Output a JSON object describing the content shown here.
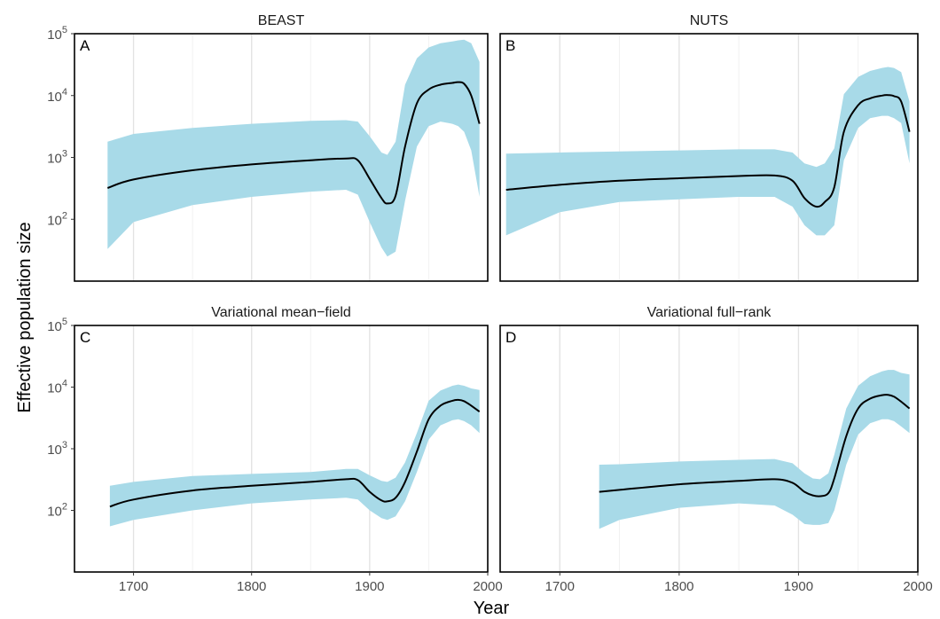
{
  "chart_data": {
    "type": "area",
    "xlabel": "Year",
    "ylabel": "Effective population size",
    "xlim": [
      1650,
      2000
    ],
    "x_ticks": [
      1700,
      1800,
      1900,
      2000
    ],
    "y_scale": "log10",
    "ylim": [
      10,
      100000
    ],
    "y_ticks": [
      {
        "base": "10",
        "exp": "2",
        "value": 100
      },
      {
        "base": "10",
        "exp": "3",
        "value": 1000
      },
      {
        "base": "10",
        "exp": "4",
        "value": 10000
      },
      {
        "base": "10",
        "exp": "5",
        "value": 100000
      }
    ],
    "band_color": "#a8dae8",
    "line_color": "#000000",
    "grid": "vertical major and minor, light grey",
    "panels": [
      {
        "title": "BEAST",
        "label": "A",
        "x": [
          1678,
          1700,
          1750,
          1800,
          1850,
          1880,
          1890,
          1900,
          1910,
          1915,
          1922,
          1930,
          1940,
          1950,
          1960,
          1970,
          1975,
          1980,
          1986,
          1993
        ],
        "median": [
          320,
          440,
          620,
          770,
          900,
          960,
          900,
          450,
          220,
          180,
          240,
          1500,
          7500,
          12500,
          15000,
          16000,
          16500,
          15500,
          10000,
          3500
        ],
        "lower": [
          33,
          90,
          170,
          230,
          280,
          300,
          250,
          90,
          35,
          25,
          30,
          200,
          1500,
          3200,
          3800,
          3500,
          3200,
          2600,
          1300,
          230
        ],
        "upper": [
          1800,
          2400,
          3000,
          3500,
          3900,
          4000,
          3800,
          2200,
          1200,
          1100,
          1800,
          15000,
          40000,
          60000,
          70000,
          75000,
          78000,
          80000,
          70000,
          35000
        ]
      },
      {
        "title": "NUTS",
        "label": "B",
        "x": [
          1655,
          1700,
          1750,
          1800,
          1850,
          1880,
          1895,
          1905,
          1915,
          1922,
          1930,
          1938,
          1950,
          1960,
          1970,
          1975,
          1980,
          1986,
          1993
        ],
        "median": [
          300,
          360,
          420,
          460,
          500,
          510,
          420,
          220,
          160,
          190,
          330,
          2600,
          7000,
          9000,
          10000,
          10200,
          9800,
          8000,
          2600
        ],
        "lower": [
          55,
          130,
          190,
          210,
          230,
          230,
          160,
          80,
          55,
          55,
          80,
          900,
          3000,
          4300,
          4700,
          4700,
          4300,
          3600,
          800
        ],
        "upper": [
          1150,
          1200,
          1250,
          1300,
          1350,
          1350,
          1200,
          800,
          700,
          800,
          1400,
          10500,
          20000,
          25000,
          28000,
          29000,
          28000,
          24000,
          8000
        ]
      },
      {
        "title": "Variational mean−field",
        "label": "C",
        "x": [
          1680,
          1700,
          1750,
          1800,
          1850,
          1880,
          1890,
          1900,
          1910,
          1915,
          1922,
          1930,
          1940,
          1950,
          1960,
          1970,
          1975,
          1980,
          1986,
          1993
        ],
        "median": [
          115,
          150,
          210,
          250,
          290,
          320,
          310,
          200,
          145,
          140,
          160,
          290,
          900,
          3000,
          5000,
          6000,
          6200,
          5900,
          5000,
          4000
        ],
        "lower": [
          55,
          70,
          100,
          130,
          150,
          160,
          150,
          100,
          75,
          70,
          80,
          140,
          420,
          1400,
          2400,
          2900,
          3000,
          2800,
          2400,
          1800
        ],
        "upper": [
          250,
          290,
          360,
          390,
          420,
          470,
          470,
          370,
          300,
          290,
          340,
          600,
          1800,
          6000,
          8800,
          10500,
          11000,
          10500,
          9500,
          9000
        ]
      },
      {
        "title": "Variational full−rank",
        "label": "D",
        "x": [
          1733,
          1750,
          1800,
          1850,
          1880,
          1895,
          1905,
          1912,
          1918,
          1925,
          1930,
          1940,
          1950,
          1960,
          1970,
          1975,
          1980,
          1986,
          1993
        ],
        "median": [
          200,
          215,
          265,
          300,
          320,
          280,
          200,
          175,
          170,
          190,
          330,
          1600,
          4500,
          6500,
          7400,
          7500,
          7000,
          5800,
          4500
        ],
        "lower": [
          50,
          70,
          110,
          130,
          120,
          85,
          60,
          58,
          58,
          62,
          100,
          550,
          1700,
          2600,
          3000,
          3000,
          2800,
          2300,
          1800
        ],
        "upper": [
          550,
          560,
          620,
          660,
          680,
          580,
          400,
          330,
          320,
          400,
          800,
          4500,
          10500,
          15000,
          18000,
          19000,
          19000,
          17000,
          16000
        ]
      }
    ]
  }
}
